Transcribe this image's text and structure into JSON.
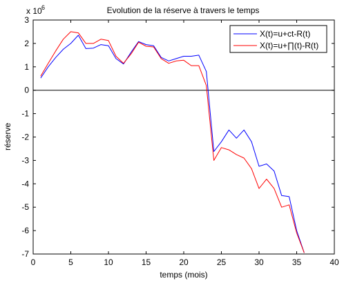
{
  "chart_data": {
    "type": "line",
    "title": "Evolution de la réserve à travers le temps",
    "xlabel": "temps (mois)",
    "ylabel": "réserve",
    "y_scale_note": "x 10",
    "y_scale_exponent": "6",
    "xlim": [
      0,
      40
    ],
    "ylim": [
      -7,
      3
    ],
    "x_ticks": [
      0,
      5,
      10,
      15,
      20,
      25,
      30,
      35,
      40
    ],
    "y_ticks": [
      -7,
      -6,
      -5,
      -4,
      -3,
      -2,
      -1,
      0,
      1,
      2,
      3
    ],
    "grid": false,
    "reference_line_y": 0,
    "legend_position": "top-right",
    "series": [
      {
        "name": "X(t)=u+ct-R(t)",
        "color": "#0000ff",
        "x": [
          1,
          2,
          3,
          4,
          5,
          6,
          7,
          8,
          9,
          10,
          11,
          12,
          13,
          14,
          15,
          16,
          17,
          18,
          19,
          20,
          21,
          22,
          23,
          24,
          25,
          26,
          27,
          28,
          29,
          30,
          31,
          32,
          33,
          34,
          35,
          36
        ],
        "y": [
          0.52,
          1.0,
          1.4,
          1.75,
          2.0,
          2.35,
          1.78,
          1.8,
          1.95,
          1.9,
          1.35,
          1.12,
          1.62,
          2.08,
          1.95,
          1.9,
          1.4,
          1.25,
          1.35,
          1.45,
          1.45,
          1.5,
          0.8,
          -2.62,
          -2.2,
          -1.7,
          -2.05,
          -1.7,
          -2.2,
          -3.25,
          -3.15,
          -3.45,
          -4.5,
          -4.55,
          -6.0,
          -6.95
        ]
      },
      {
        "name": "X(t)=u+∏(t)-R(t)",
        "color": "#ff0000",
        "x": [
          1,
          2,
          3,
          4,
          5,
          6,
          7,
          8,
          9,
          10,
          11,
          12,
          13,
          14,
          15,
          16,
          17,
          18,
          19,
          20,
          21,
          22,
          23,
          24,
          25,
          26,
          27,
          28,
          29,
          30,
          31,
          32,
          33,
          34,
          35,
          36
        ],
        "y": [
          0.6,
          1.15,
          1.68,
          2.18,
          2.5,
          2.45,
          2.0,
          2.0,
          2.18,
          2.12,
          1.45,
          1.15,
          1.55,
          2.05,
          1.88,
          1.85,
          1.35,
          1.15,
          1.25,
          1.28,
          1.05,
          1.05,
          0.2,
          -3.0,
          -2.45,
          -2.55,
          -2.75,
          -2.9,
          -3.35,
          -4.2,
          -3.8,
          -4.2,
          -5.0,
          -4.9,
          -6.1,
          -6.95
        ]
      }
    ]
  }
}
